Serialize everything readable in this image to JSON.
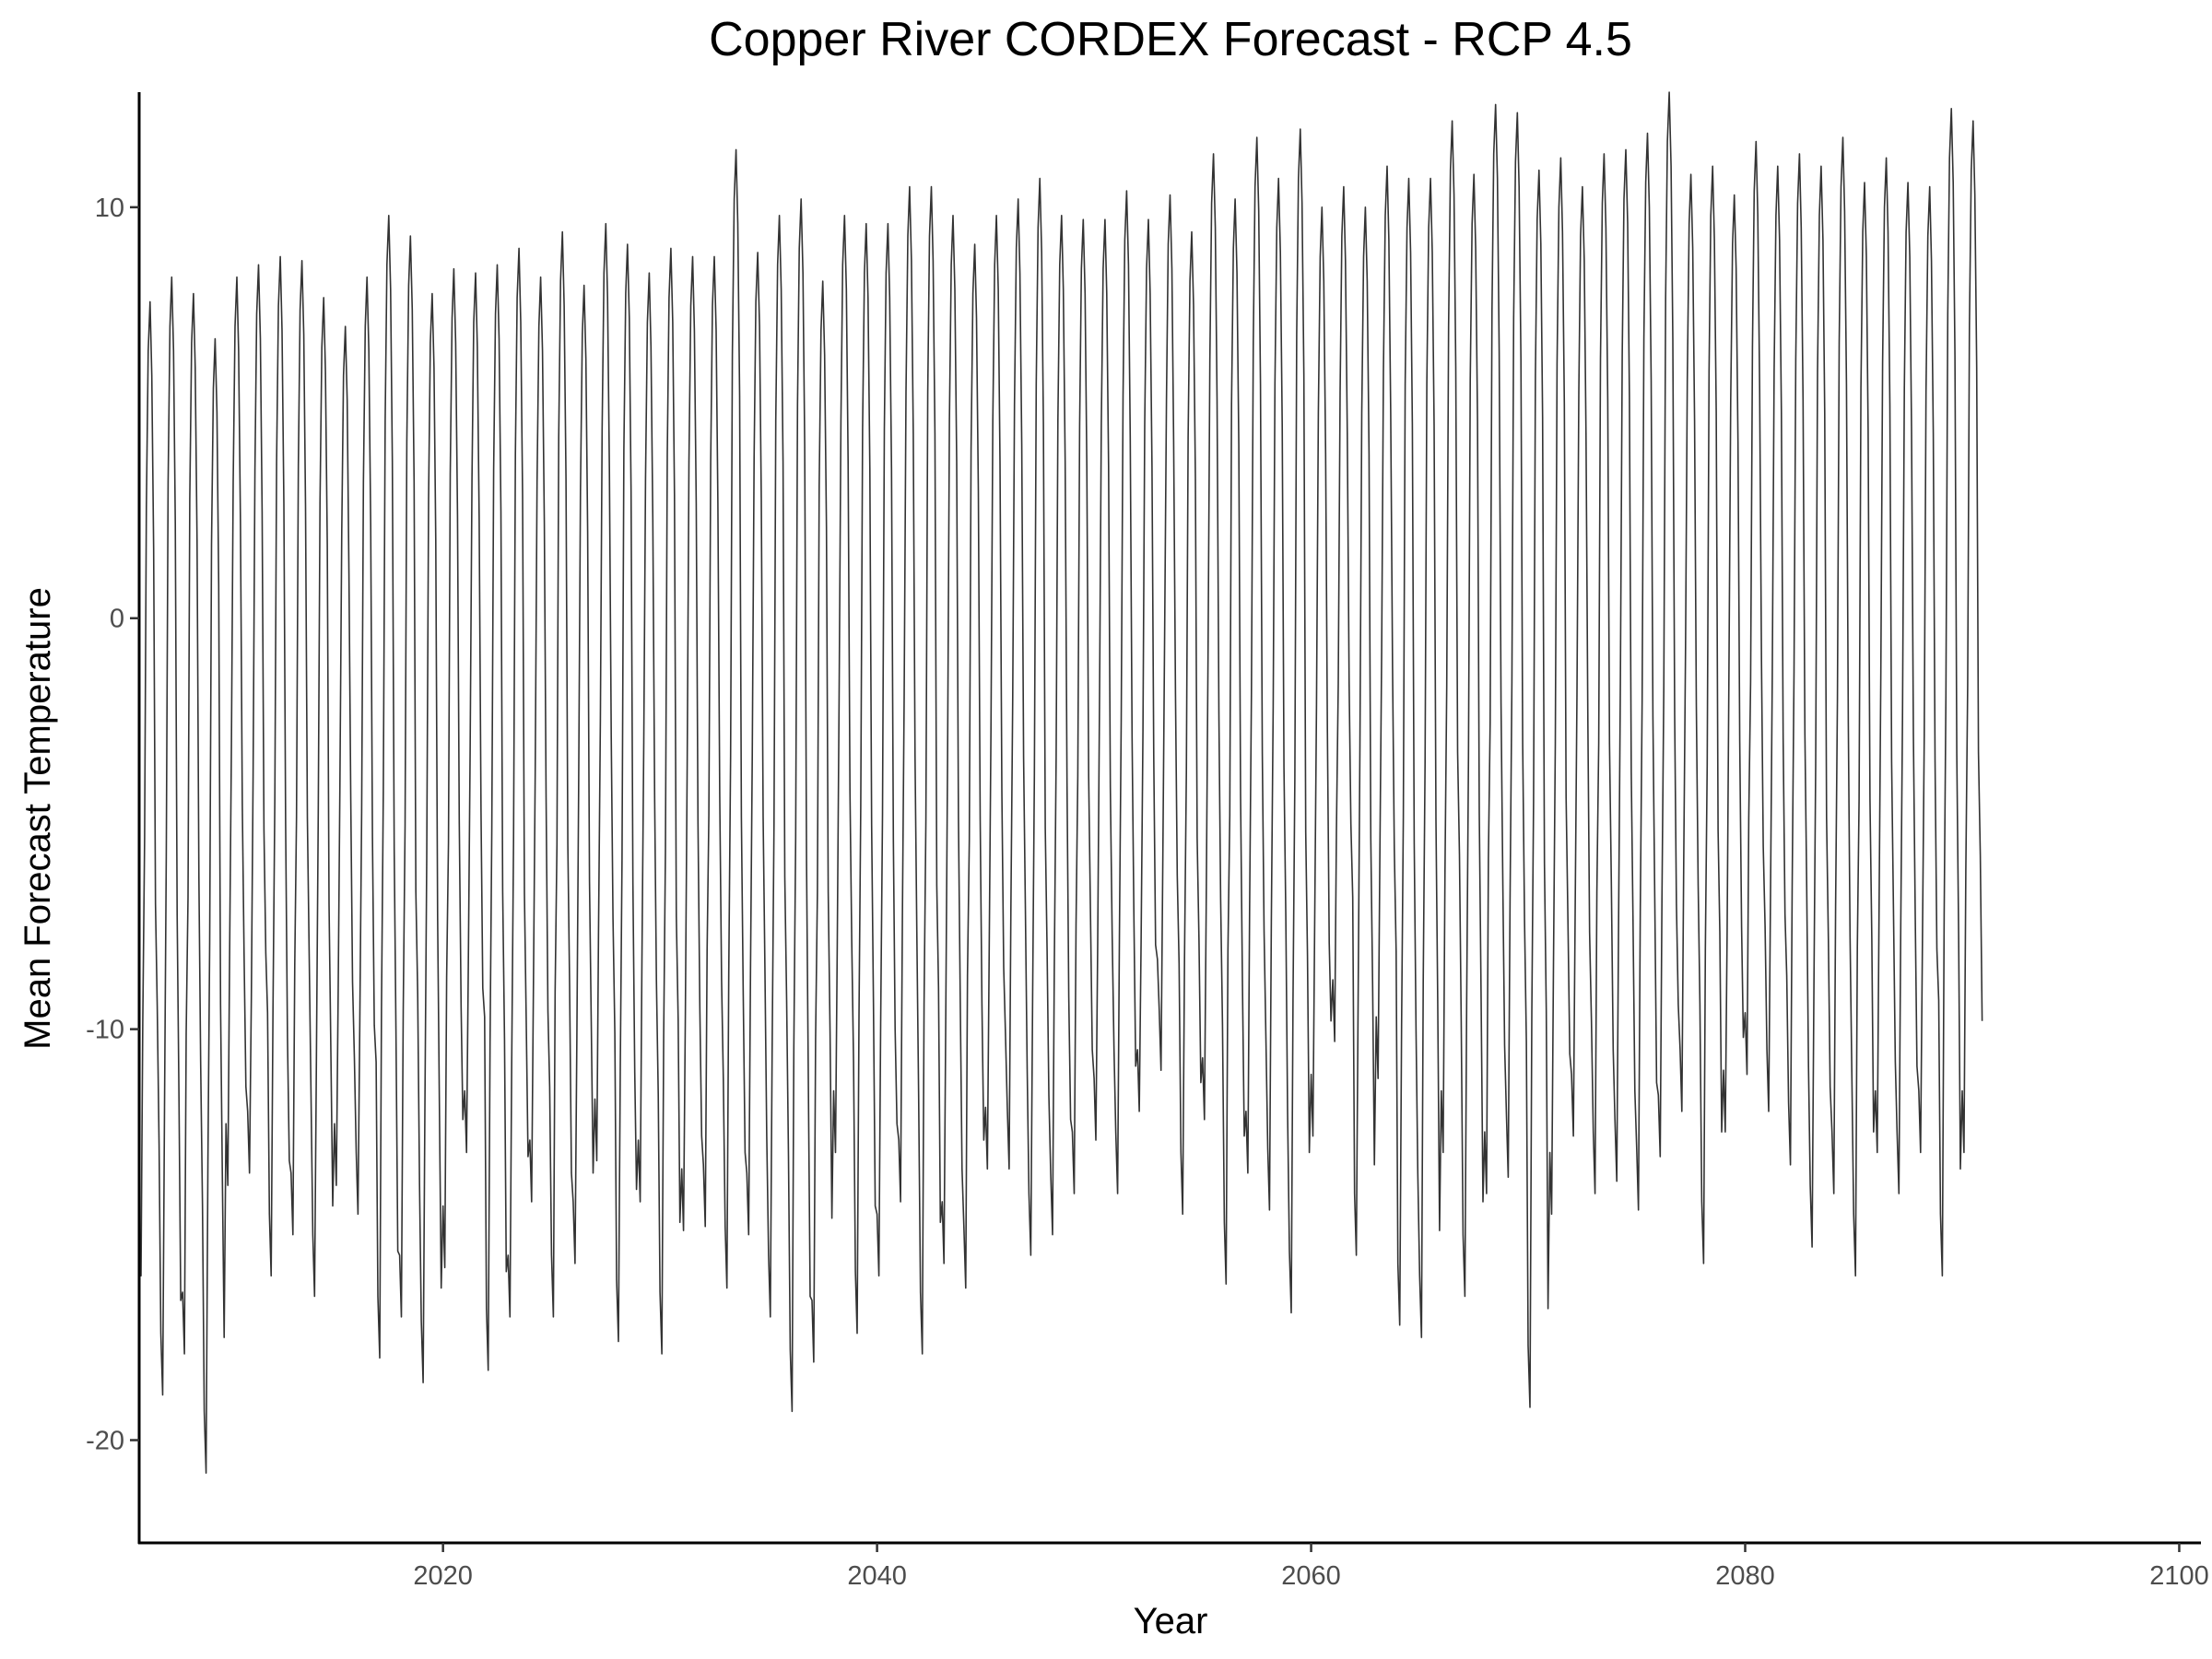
{
  "chart_data": {
    "type": "line",
    "title": "Copper River CORDEX Forecast - RCP 4.5",
    "xlabel": "Year",
    "ylabel": "Mean Forecast Temperature",
    "xlim": [
      2006,
      2101
    ],
    "ylim": [
      -22.5,
      12.8
    ],
    "x_ticks": [
      2020,
      2040,
      2060,
      2080,
      2100
    ],
    "y_ticks": [
      -20,
      -10,
      0,
      10
    ],
    "x_tick_labels": [
      "2020",
      "2040",
      "2060",
      "2080",
      "2100"
    ],
    "y_tick_labels": [
      "-20",
      "-10",
      "0",
      "10"
    ],
    "grid": false,
    "legend": "none",
    "series": [
      {
        "frequency": "monthly",
        "start_year": 2006,
        "color": "#333333",
        "annual_summer_peak": [
          7.7,
          8.3,
          7.9,
          6.8,
          8.3,
          8.6,
          8.8,
          8.7,
          7.8,
          7.1,
          8.3,
          9.8,
          9.3,
          7.9,
          8.5,
          8.4,
          8.6,
          9.0,
          8.3,
          9.4,
          8.1,
          9.6,
          9.1,
          8.4,
          9.0,
          8.8,
          8.8,
          11.4,
          8.9,
          9.8,
          10.2,
          8.2,
          9.8,
          9.6,
          9.6,
          10.5,
          10.5,
          9.8,
          9.1,
          9.8,
          10.2,
          10.7,
          9.8,
          9.7,
          9.7,
          10.4,
          9.7,
          10.3,
          9.4,
          11.3,
          10.2,
          11.7,
          10.7,
          11.9,
          10.0,
          10.5,
          10.0,
          11.0,
          10.7,
          10.7,
          12.1,
          10.8,
          12.5,
          12.3,
          10.9,
          11.2,
          10.5,
          11.3,
          11.4,
          11.8,
          12.8,
          10.8,
          11.0,
          10.3,
          11.6,
          11.0,
          11.3,
          11.0,
          11.7,
          10.6,
          11.2,
          10.6,
          10.5,
          12.4,
          12.1
        ],
        "annual_winter_trough": [
          -16.0,
          -18.9,
          -17.9,
          -20.8,
          -13.8,
          -13.5,
          -16.0,
          -15.0,
          -16.5,
          -13.8,
          -14.5,
          -18.0,
          -17.0,
          -18.6,
          -15.8,
          -13.0,
          -18.3,
          -17.0,
          -14.2,
          -17.0,
          -15.7,
          -13.2,
          -17.6,
          -14.2,
          -17.9,
          -14.9,
          -14.8,
          -16.3,
          -15.0,
          -17.0,
          -19.3,
          -18.1,
          -13.0,
          -17.4,
          -16.0,
          -14.2,
          -17.9,
          -15.7,
          -16.3,
          -13.4,
          -13.4,
          -15.5,
          -15.0,
          -14.0,
          -12.7,
          -14.0,
          -12.0,
          -11.0,
          -14.5,
          -12.2,
          -16.2,
          -13.5,
          -14.4,
          -16.9,
          -12.6,
          -10.3,
          -15.5,
          -11.2,
          -17.2,
          -17.5,
          -13.0,
          -16.5,
          -14.0,
          -13.6,
          -19.2,
          -14.5,
          -12.6,
          -14.0,
          -13.7,
          -14.4,
          -13.1,
          -12.0,
          -15.7,
          -12.5,
          -11.1,
          -12.0,
          -13.3,
          -15.3,
          -14.0,
          -16.0,
          -13.0,
          -14.0,
          -13.0,
          -16.0,
          -13.0
        ]
      }
    ]
  }
}
